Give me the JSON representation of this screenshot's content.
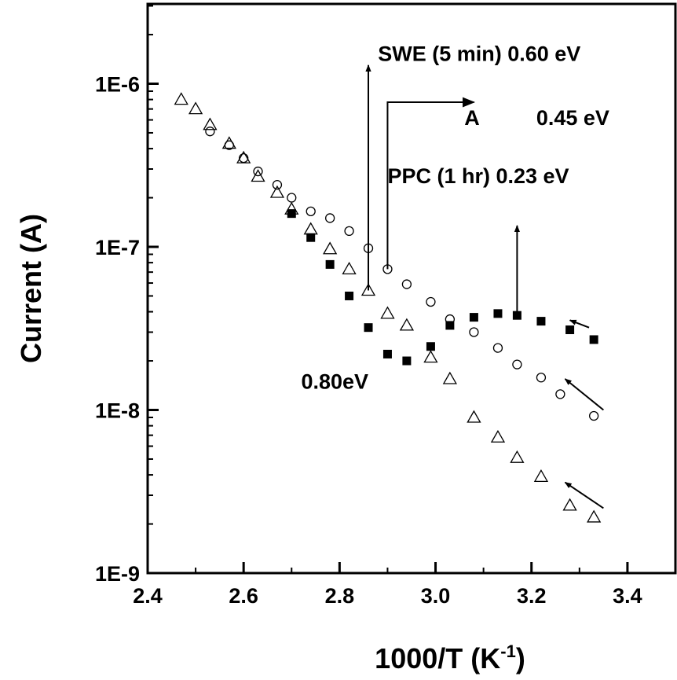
{
  "chart_data": {
    "type": "scatter",
    "xlabel": "1000/T (K",
    "xlabel_sup": "-1",
    "xlabel_end": ")",
    "ylabel": "Current (A)",
    "xlim": [
      2.4,
      3.5
    ],
    "ylim": [
      1e-09,
      5e-06
    ],
    "yscale": "log",
    "grid": false,
    "x_ticks": [
      2.4,
      2.6,
      2.8,
      3.0,
      3.2,
      3.4
    ],
    "x_tick_labels": [
      "2.4",
      "2.6",
      "2.8",
      "3.0",
      "3.2",
      "3.4"
    ],
    "y_ticks": [
      1e-09,
      1e-08,
      1e-07,
      1e-06
    ],
    "y_tick_labels": [
      "1E-9",
      "1E-8",
      "1E-7",
      "1E-6"
    ],
    "series": [
      {
        "marker": "triangle-open",
        "points": [
          [
            2.47,
            8e-07
          ],
          [
            2.5,
            7e-07
          ],
          [
            2.53,
            5.6e-07
          ],
          [
            2.57,
            4.3e-07
          ],
          [
            2.6,
            3.5e-07
          ],
          [
            2.63,
            2.7e-07
          ],
          [
            2.67,
            2.15e-07
          ],
          [
            2.7,
            1.7e-07
          ],
          [
            2.74,
            1.28e-07
          ],
          [
            2.78,
            9.7e-08
          ],
          [
            2.82,
            7.3e-08
          ],
          [
            2.86,
            5.4e-08
          ],
          [
            2.9,
            3.9e-08
          ],
          [
            2.94,
            3.3e-08
          ],
          [
            2.99,
            2.1e-08
          ],
          [
            3.03,
            1.55e-08
          ],
          [
            3.08,
            9e-09
          ],
          [
            3.13,
            6.8e-09
          ],
          [
            3.17,
            5.1e-09
          ],
          [
            3.22,
            3.9e-09
          ],
          [
            3.28,
            2.6e-09
          ],
          [
            3.33,
            2.2e-09
          ]
        ]
      },
      {
        "marker": "circle-open",
        "points": [
          [
            2.53,
            5.1e-07
          ],
          [
            2.57,
            4.2e-07
          ],
          [
            2.6,
            3.5e-07
          ],
          [
            2.63,
            2.9e-07
          ],
          [
            2.67,
            2.4e-07
          ],
          [
            2.7,
            2e-07
          ],
          [
            2.74,
            1.65e-07
          ],
          [
            2.78,
            1.5e-07
          ],
          [
            2.82,
            1.25e-07
          ],
          [
            2.86,
            9.8e-08
          ],
          [
            2.9,
            7.3e-08
          ],
          [
            2.94,
            5.9e-08
          ],
          [
            2.99,
            4.6e-08
          ],
          [
            3.03,
            3.6e-08
          ],
          [
            3.08,
            3e-08
          ],
          [
            3.13,
            2.4e-08
          ],
          [
            3.17,
            1.9e-08
          ],
          [
            3.22,
            1.58e-08
          ],
          [
            3.26,
            1.25e-08
          ],
          [
            3.33,
            9.2e-09
          ]
        ]
      },
      {
        "marker": "square-filled",
        "points": [
          [
            2.7,
            1.6e-07
          ],
          [
            2.74,
            1.14e-07
          ],
          [
            2.78,
            7.8e-08
          ],
          [
            2.82,
            5e-08
          ],
          [
            2.86,
            3.2e-08
          ],
          [
            2.9,
            2.2e-08
          ],
          [
            2.94,
            2e-08
          ],
          [
            2.99,
            2.45e-08
          ],
          [
            3.03,
            3.3e-08
          ],
          [
            3.08,
            3.7e-08
          ],
          [
            3.13,
            3.9e-08
          ],
          [
            3.17,
            3.8e-08
          ],
          [
            3.22,
            3.5e-08
          ],
          [
            3.28,
            3.1e-08
          ],
          [
            3.33,
            2.7e-08
          ]
        ]
      }
    ],
    "annotations": [
      {
        "text": "SWE (5 min) 0.60 eV",
        "x": 2.88,
        "y": 1.38e-06
      },
      {
        "text": "A",
        "x": 3.06,
        "y": 5.6e-07
      },
      {
        "text": "0.45 eV",
        "x": 3.21,
        "y": 5.6e-07
      },
      {
        "text": "PPC (1 hr) 0.23 eV",
        "x": 2.9,
        "y": 2.45e-07
      },
      {
        "text": "0.80eV",
        "x": 2.72,
        "y": 1.35e-08
      }
    ],
    "arrows": [
      {
        "from": [
          2.86,
          5.4e-08
        ],
        "to": [
          2.86,
          1.3e-06
        ],
        "kind": "vertical"
      },
      {
        "from": [
          2.9,
          7.3e-08
        ],
        "via": [
          2.9,
          7.7e-07
        ],
        "to": [
          3.08,
          7.7e-07
        ],
        "kind": "elbow"
      },
      {
        "from": [
          3.17,
          3.8e-08
        ],
        "to": [
          3.17,
          1.35e-07
        ],
        "kind": "vertical"
      },
      {
        "from": [
          3.32,
          3.2e-08
        ],
        "to": [
          3.28,
          3.55e-08
        ],
        "kind": "diagonal"
      },
      {
        "from": [
          3.35,
          1e-08
        ],
        "to": [
          3.27,
          1.55e-08
        ],
        "kind": "diagonal"
      },
      {
        "from": [
          3.35,
          2.5e-09
        ],
        "to": [
          3.27,
          3.6e-09
        ],
        "kind": "diagonal"
      }
    ]
  }
}
